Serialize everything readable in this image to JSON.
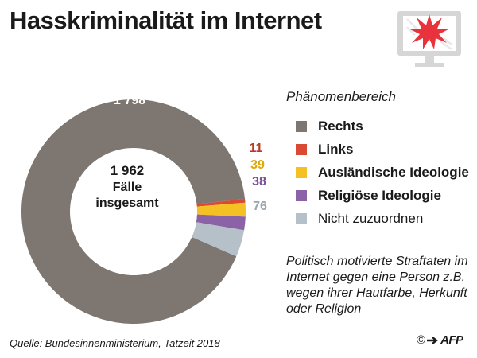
{
  "title": "Hasskriminalität im Internet",
  "chart_data": {
    "type": "pie",
    "total": "1 962",
    "center_label_line1": "Fälle",
    "center_label_line2": "insgesamt",
    "slices": [
      {
        "name": "Rechts",
        "value": 1798,
        "label": "1 798",
        "color": "#7d7671",
        "label_color": "#ffffff"
      },
      {
        "name": "Links",
        "value": 11,
        "label": "11",
        "color": "#d84a34",
        "label_color": "#b83a26"
      },
      {
        "name": "Ausländische Ideologie",
        "value": 39,
        "label": "39",
        "color": "#f5c024",
        "label_color": "#e0a800"
      },
      {
        "name": "Religiöse Ideologie",
        "value": 38,
        "label": "38",
        "color": "#8c62a7",
        "label_color": "#7a4f96"
      },
      {
        "name": "Nicht zuzuordnen",
        "value": 76,
        "label": "76",
        "color": "#b5c0c8",
        "label_color": "#9aa5ad"
      }
    ]
  },
  "legend": {
    "title": "Phänomenbereich",
    "items": [
      {
        "label": "Rechts",
        "color": "#7d7671",
        "bold": true
      },
      {
        "label": "Links",
        "color": "#d84a34",
        "bold": true
      },
      {
        "label": "Ausländische Ideologie",
        "color": "#f5c024",
        "bold": true
      },
      {
        "label": "Religiöse Ideologie",
        "color": "#8c62a7",
        "bold": true
      },
      {
        "label": "Nicht zuzuordnen",
        "color": "#b5c0c8",
        "bold": false
      }
    ]
  },
  "note": "Politisch motivierte Straftaten im Internet gegen eine Person z.B. wegen ihrer Hautfarbe, Herkunft oder Religion",
  "source": "Quelle: Bundesinnenministerium, Tatzeit 2018",
  "credit": {
    "copyright": "©",
    "agency": "AFP"
  },
  "icon": "monitor-explosion-icon"
}
